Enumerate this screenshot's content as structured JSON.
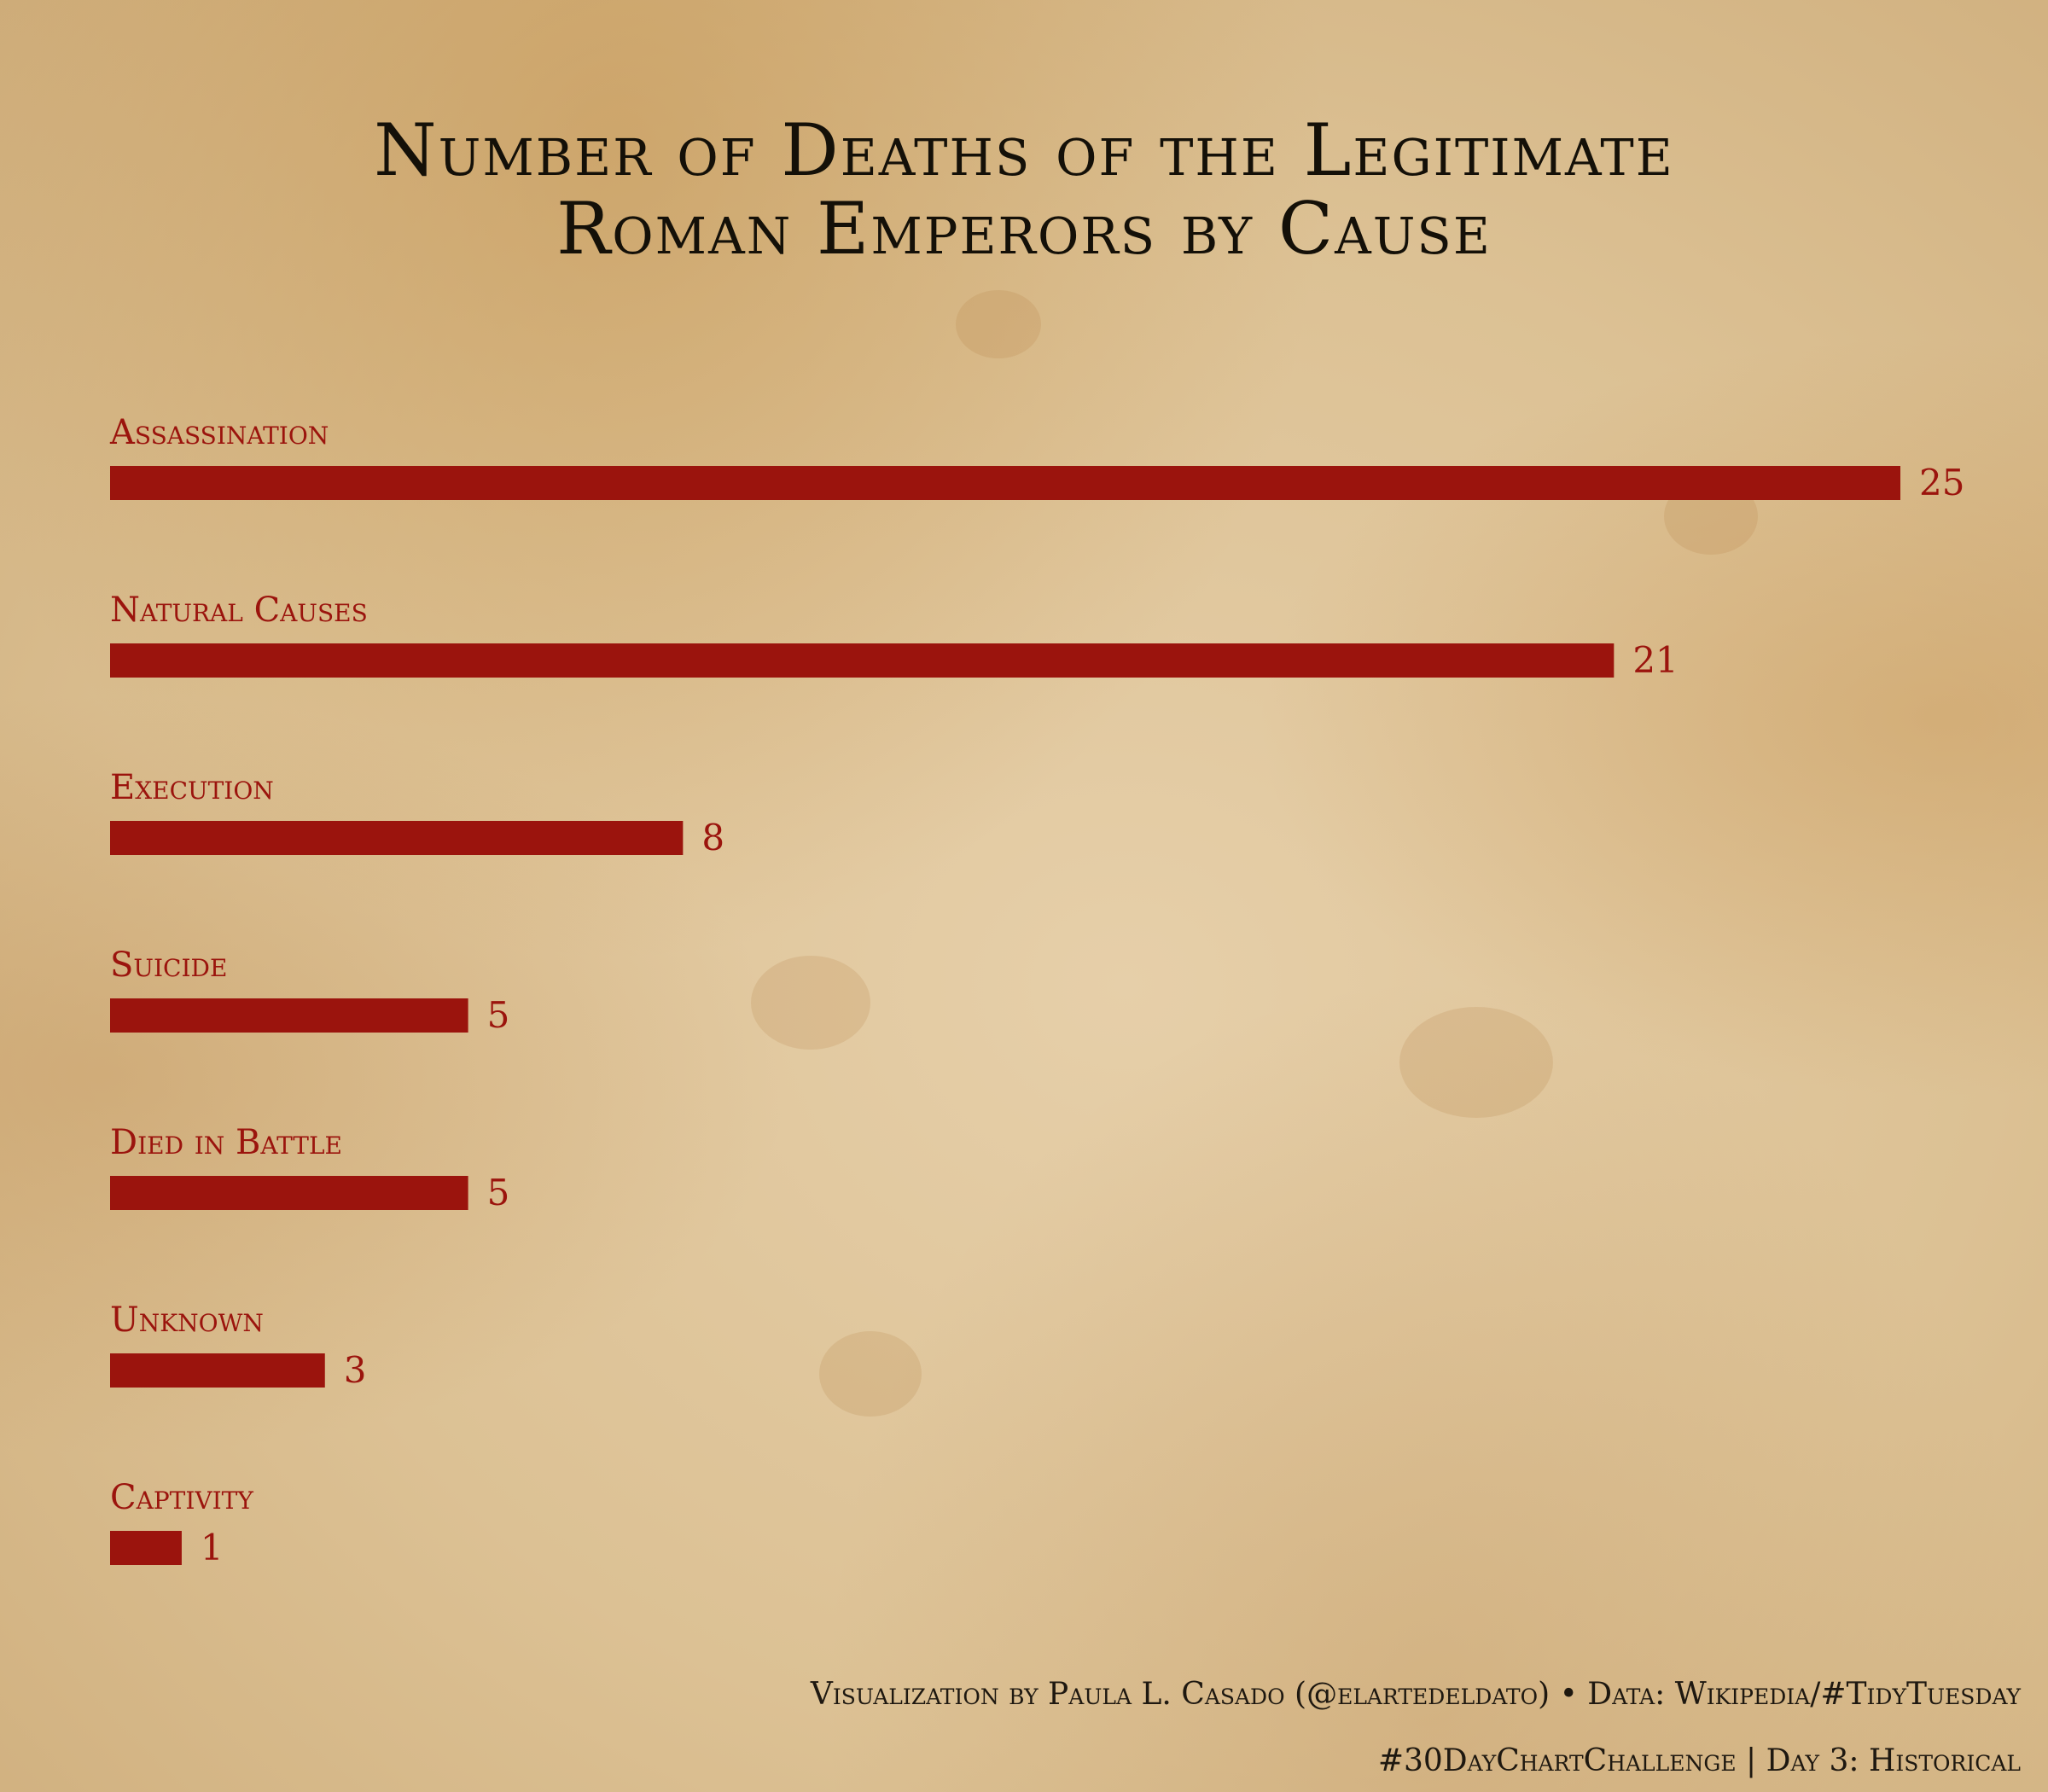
{
  "chart_data": {
    "type": "bar",
    "orientation": "horizontal",
    "title_lines": [
      "Number of Deaths of the Legitimate",
      "Roman Emperors by Cause"
    ],
    "categories": [
      "Assassination",
      "Natural Causes",
      "Execution",
      "Suicide",
      "Died in Battle",
      "Unknown",
      "Captivity"
    ],
    "values": [
      25,
      21,
      8,
      5,
      5,
      3,
      1
    ],
    "xlabel": "",
    "ylabel": "",
    "xlim": [
      0,
      25
    ],
    "grid": false,
    "colors": {
      "bar": "#9b140d",
      "category_label": "#9b140d",
      "value_label": "#9b140d",
      "title": "#141008",
      "caption": "#1e1810"
    }
  },
  "caption": {
    "line1": "Visualization by Paula L. Casado  (@elartedeldato) • Data: Wikipedia/#TidyTuesday",
    "line2": "#30DayChartChallenge | Day 3: Historical"
  }
}
